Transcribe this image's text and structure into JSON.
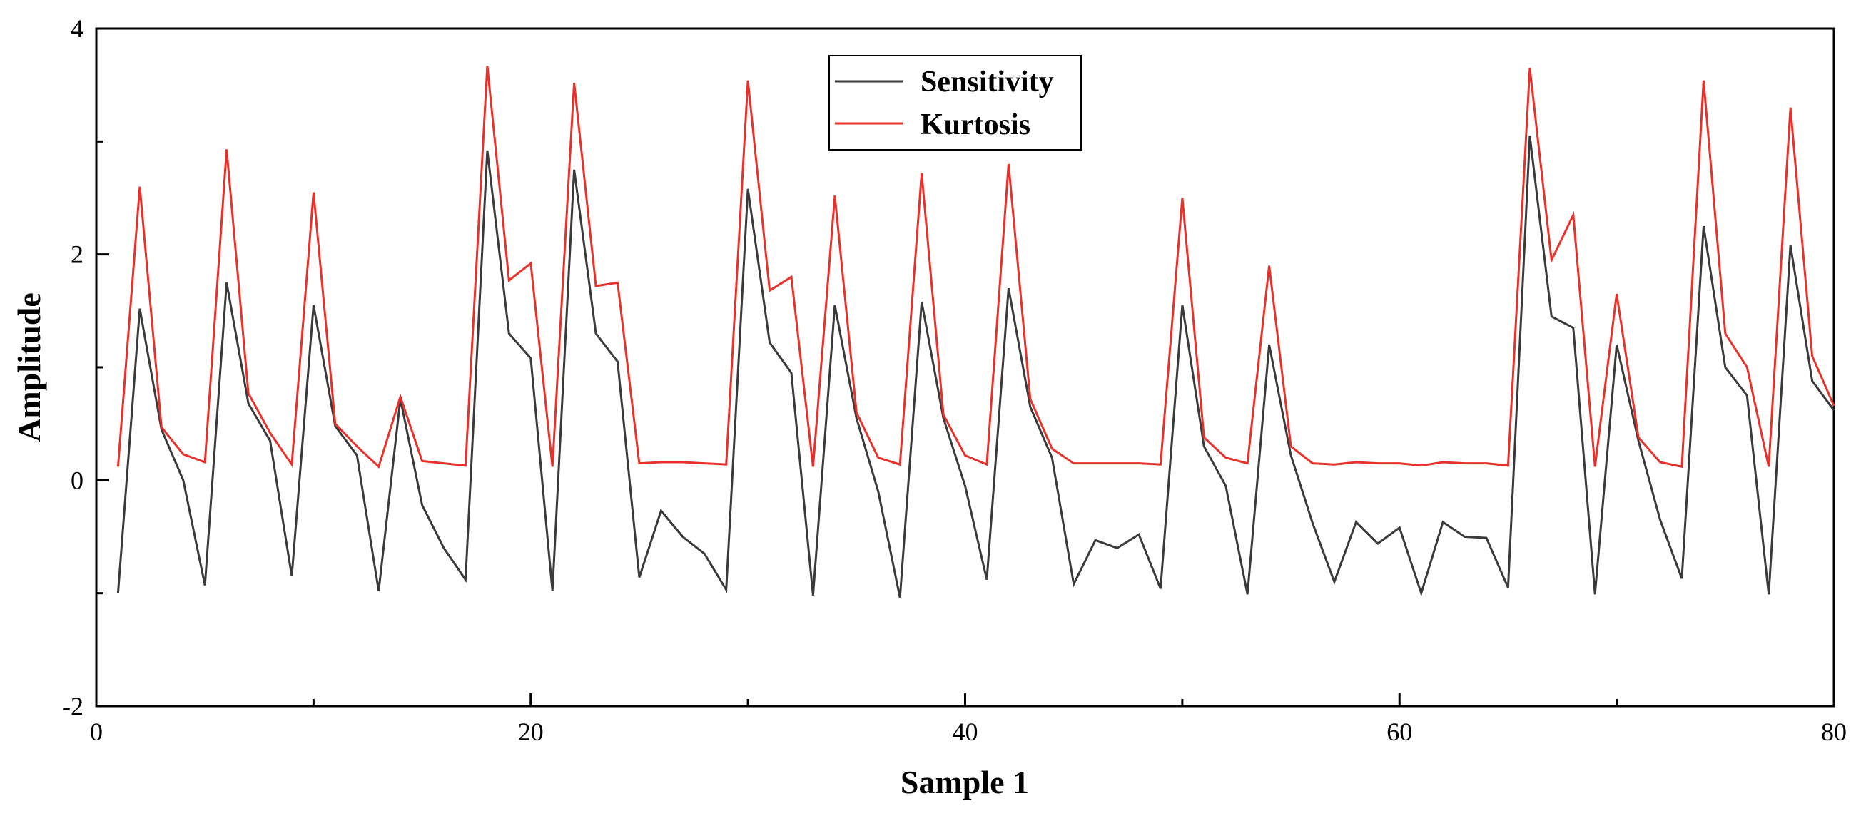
{
  "chart_data": {
    "type": "line",
    "title": "",
    "xlabel": "Sample 1",
    "ylabel": "Amplitude",
    "xlim": [
      0,
      80
    ],
    "ylim": [
      -2,
      4
    ],
    "xticks": [
      0,
      20,
      40,
      60,
      80
    ],
    "xtick_labels": [
      "0",
      "20",
      "40",
      "60",
      "80"
    ],
    "yticks": [
      -2,
      0,
      2,
      4
    ],
    "ytick_labels": [
      "-2",
      "0",
      "2",
      "4"
    ],
    "grid": false,
    "legend_position": "top-center",
    "x": [
      1,
      2,
      3,
      4,
      5,
      6,
      7,
      8,
      9,
      10,
      11,
      12,
      13,
      14,
      15,
      16,
      17,
      18,
      19,
      20,
      21,
      22,
      23,
      24,
      25,
      26,
      27,
      28,
      29,
      30,
      31,
      32,
      33,
      34,
      35,
      36,
      37,
      38,
      39,
      40,
      41,
      42,
      43,
      44,
      45,
      46,
      47,
      48,
      49,
      50,
      51,
      52,
      53,
      54,
      55,
      56,
      57,
      58,
      59,
      60,
      61,
      62,
      63,
      64,
      65,
      66,
      67,
      68,
      69,
      70,
      71,
      72,
      73,
      74,
      75,
      76,
      77,
      78,
      79,
      80
    ],
    "series": [
      {
        "name": "Sensitivity",
        "color": "#3a3a3a",
        "values": [
          -1.0,
          1.52,
          0.45,
          0.0,
          -0.93,
          1.75,
          0.68,
          0.35,
          -0.85,
          1.55,
          0.48,
          0.22,
          -0.98,
          0.72,
          -0.22,
          -0.6,
          -0.88,
          2.92,
          1.3,
          1.08,
          -0.98,
          2.75,
          1.3,
          1.05,
          -0.86,
          -0.27,
          -0.5,
          -0.65,
          -0.97,
          2.58,
          1.22,
          0.95,
          -1.02,
          1.55,
          0.55,
          -0.1,
          -1.04,
          1.58,
          0.55,
          -0.05,
          -0.88,
          1.7,
          0.65,
          0.2,
          -0.92,
          -0.53,
          -0.6,
          -0.48,
          -0.96,
          1.55,
          0.3,
          -0.05,
          -1.01,
          1.2,
          0.22,
          -0.38,
          -0.9,
          -0.37,
          -0.56,
          -0.42,
          -1.0,
          -0.37,
          -0.5,
          -0.51,
          -0.95,
          3.05,
          1.45,
          1.35,
          -1.01,
          1.2,
          0.35,
          -0.35,
          -0.87,
          2.25,
          1.0,
          0.75,
          -1.01,
          2.08,
          0.88,
          0.62
        ]
      },
      {
        "name": "Kurtosis",
        "color": "#e8312a",
        "values": [
          0.12,
          2.6,
          0.47,
          0.23,
          0.16,
          2.93,
          0.77,
          0.42,
          0.14,
          2.55,
          0.5,
          0.3,
          0.12,
          0.74,
          0.17,
          0.15,
          0.13,
          3.67,
          1.77,
          1.92,
          0.12,
          3.52,
          1.72,
          1.75,
          0.15,
          0.16,
          0.16,
          0.15,
          0.14,
          3.54,
          1.68,
          1.8,
          0.12,
          2.52,
          0.6,
          0.2,
          0.14,
          2.72,
          0.58,
          0.22,
          0.14,
          2.8,
          0.72,
          0.28,
          0.15,
          0.15,
          0.15,
          0.15,
          0.14,
          2.5,
          0.38,
          0.2,
          0.15,
          1.9,
          0.3,
          0.15,
          0.14,
          0.16,
          0.15,
          0.15,
          0.13,
          0.16,
          0.15,
          0.15,
          0.13,
          3.65,
          1.95,
          2.35,
          0.12,
          1.65,
          0.38,
          0.16,
          0.12,
          3.54,
          1.3,
          1.0,
          0.12,
          3.3,
          1.1,
          0.66
        ]
      }
    ]
  }
}
